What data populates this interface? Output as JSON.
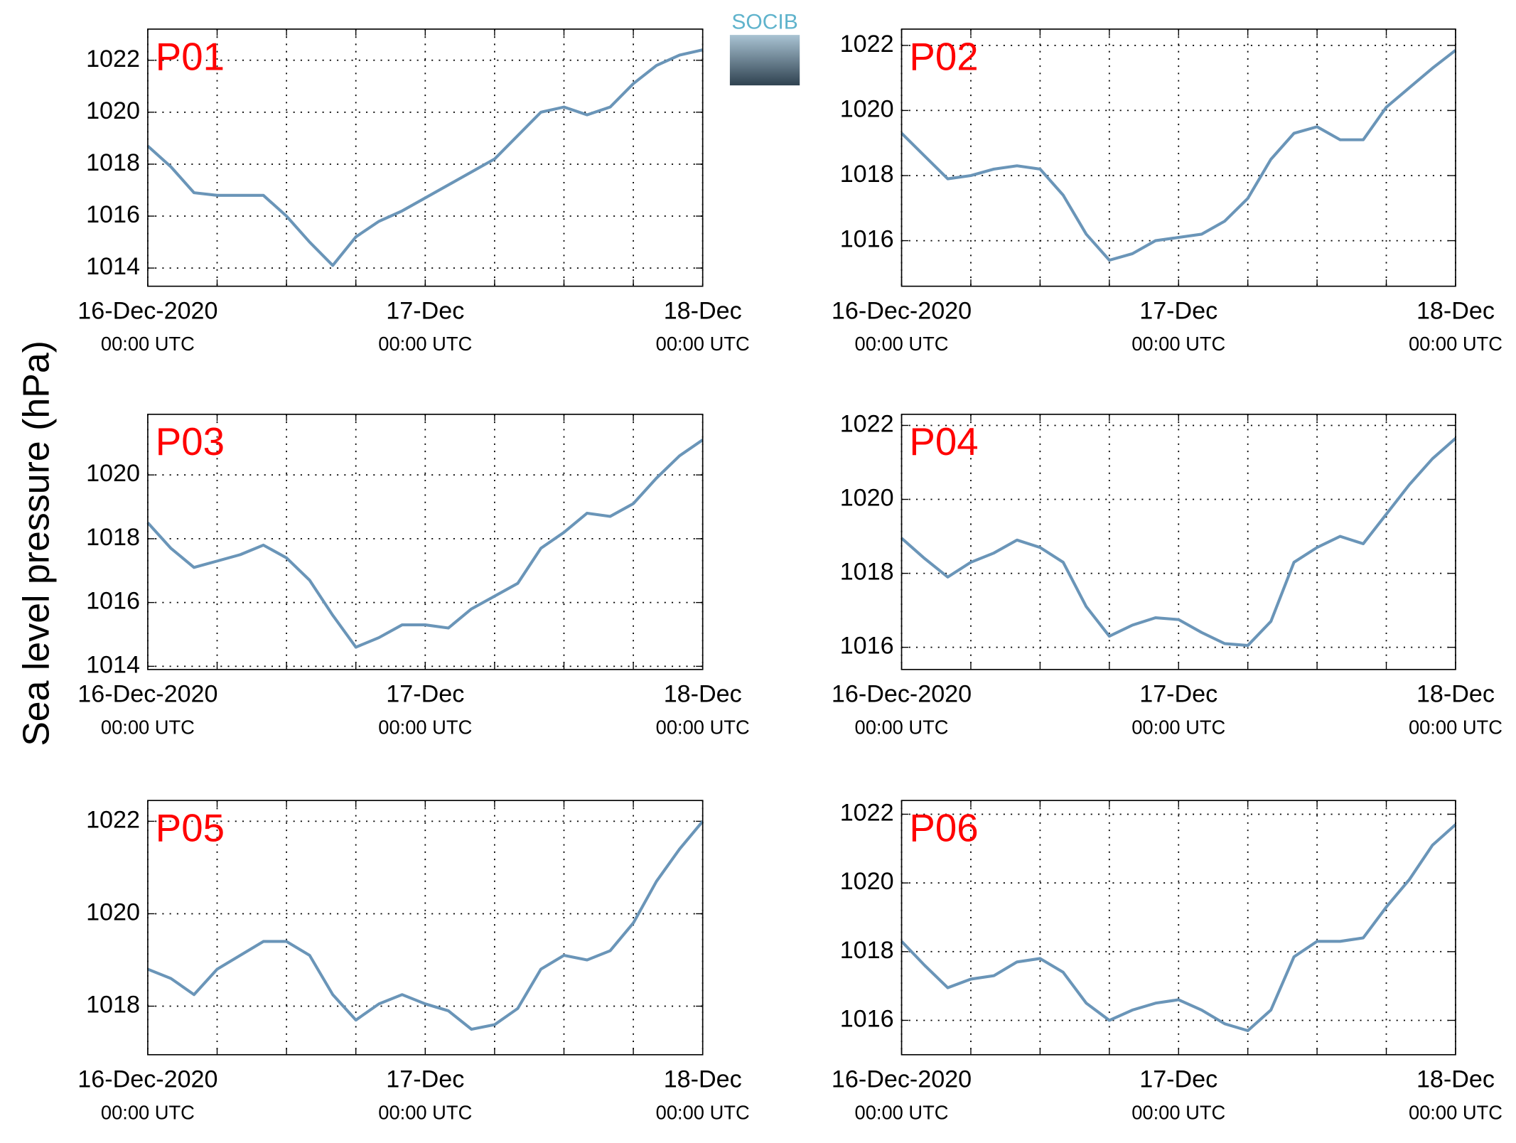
{
  "ylabel": "Sea level pressure (hPa)",
  "logo": "SOCIB",
  "chart_data": [
    {
      "type": "line",
      "title": "P01",
      "color": "#6a95b8",
      "grid": true,
      "x": [
        0,
        2,
        4,
        6,
        8,
        10,
        12,
        14,
        16,
        18,
        20,
        22,
        24,
        26,
        28,
        30,
        32,
        34,
        36,
        38,
        40,
        42,
        44,
        46,
        48
      ],
      "values": [
        1018.7,
        1017.9,
        1016.9,
        1016.8,
        1016.8,
        1016.8,
        1016.0,
        1015.0,
        1014.1,
        1015.2,
        1015.8,
        1016.2,
        1016.7,
        1017.2,
        1017.7,
        1018.2,
        1019.1,
        1020.0,
        1020.2,
        1019.9,
        1020.2,
        1021.1,
        1021.8,
        1022.2,
        1022.4
      ],
      "xlim": [
        0,
        48
      ],
      "ylim": [
        1013.3,
        1023.2
      ],
      "yticks": [
        1014,
        1016,
        1018,
        1020,
        1022
      ],
      "xticks": [
        {
          "value": 0,
          "label": "16-Dec-2020",
          "sublabel": "00:00 UTC"
        },
        {
          "value": 6,
          "label": null
        },
        {
          "value": 12,
          "label": null
        },
        {
          "value": 18,
          "label": null
        },
        {
          "value": 24,
          "label": "17-Dec",
          "sublabel": "00:00 UTC"
        },
        {
          "value": 30,
          "label": null
        },
        {
          "value": 36,
          "label": null
        },
        {
          "value": 42,
          "label": null
        },
        {
          "value": 48,
          "label": "18-Dec",
          "sublabel": "00:00 UTC"
        }
      ]
    },
    {
      "type": "line",
      "title": "P02",
      "color": "#6a95b8",
      "grid": true,
      "x": [
        0,
        2,
        4,
        6,
        8,
        10,
        12,
        14,
        16,
        18,
        20,
        22,
        24,
        26,
        28,
        30,
        32,
        34,
        36,
        38,
        40,
        42,
        44,
        46,
        48
      ],
      "values": [
        1019.3,
        1018.6,
        1017.9,
        1018.0,
        1018.2,
        1018.3,
        1018.2,
        1017.4,
        1016.2,
        1015.4,
        1015.6,
        1016.0,
        1016.1,
        1016.2,
        1016.6,
        1017.3,
        1018.5,
        1019.3,
        1019.5,
        1019.1,
        1019.1,
        1020.1,
        1020.7,
        1021.3,
        1021.85
      ],
      "xlim": [
        0,
        48
      ],
      "ylim": [
        1014.6,
        1022.5
      ],
      "yticks": [
        1016,
        1018,
        1020,
        1022
      ],
      "xticks": [
        {
          "value": 0,
          "label": "16-Dec-2020",
          "sublabel": "00:00 UTC"
        },
        {
          "value": 6,
          "label": null
        },
        {
          "value": 12,
          "label": null
        },
        {
          "value": 18,
          "label": null
        },
        {
          "value": 24,
          "label": "17-Dec",
          "sublabel": "00:00 UTC"
        },
        {
          "value": 30,
          "label": null
        },
        {
          "value": 36,
          "label": null
        },
        {
          "value": 42,
          "label": null
        },
        {
          "value": 48,
          "label": "18-Dec",
          "sublabel": "00:00 UTC"
        }
      ]
    },
    {
      "type": "line",
      "title": "P03",
      "color": "#6a95b8",
      "grid": true,
      "x": [
        0,
        2,
        4,
        6,
        8,
        10,
        12,
        14,
        16,
        18,
        20,
        22,
        24,
        26,
        28,
        30,
        32,
        34,
        36,
        38,
        40,
        42,
        44,
        46,
        48
      ],
      "values": [
        1018.5,
        1017.7,
        1017.1,
        1017.3,
        1017.5,
        1017.8,
        1017.4,
        1016.7,
        1015.6,
        1014.6,
        1014.9,
        1015.3,
        1015.3,
        1015.2,
        1015.8,
        1016.2,
        1016.6,
        1017.7,
        1018.2,
        1018.8,
        1018.7,
        1019.1,
        1019.9,
        1020.6,
        1021.1
      ],
      "xlim": [
        0,
        48
      ],
      "ylim": [
        1013.9,
        1021.9
      ],
      "yticks": [
        1014,
        1016,
        1018,
        1020
      ],
      "xticks": [
        {
          "value": 0,
          "label": "16-Dec-2020",
          "sublabel": "00:00 UTC"
        },
        {
          "value": 6,
          "label": null
        },
        {
          "value": 12,
          "label": null
        },
        {
          "value": 18,
          "label": null
        },
        {
          "value": 24,
          "label": "17-Dec",
          "sublabel": "00:00 UTC"
        },
        {
          "value": 30,
          "label": null
        },
        {
          "value": 36,
          "label": null
        },
        {
          "value": 42,
          "label": null
        },
        {
          "value": 48,
          "label": "18-Dec",
          "sublabel": "00:00 UTC"
        }
      ]
    },
    {
      "type": "line",
      "title": "P04",
      "color": "#6a95b8",
      "grid": true,
      "x": [
        0,
        2,
        4,
        6,
        8,
        10,
        12,
        14,
        16,
        18,
        20,
        22,
        24,
        26,
        28,
        30,
        32,
        34,
        36,
        38,
        40,
        42,
        44,
        46,
        48
      ],
      "values": [
        1018.95,
        1018.4,
        1017.9,
        1018.3,
        1018.55,
        1018.9,
        1018.7,
        1018.3,
        1017.1,
        1016.3,
        1016.6,
        1016.8,
        1016.75,
        1016.4,
        1016.1,
        1016.05,
        1016.7,
        1018.3,
        1018.7,
        1019.0,
        1018.8,
        1019.6,
        1020.4,
        1021.1,
        1021.65
      ],
      "xlim": [
        0,
        48
      ],
      "ylim": [
        1015.4,
        1022.3
      ],
      "yticks": [
        1016,
        1018,
        1020,
        1022
      ],
      "xticks": [
        {
          "value": 0,
          "label": "16-Dec-2020",
          "sublabel": "00:00 UTC"
        },
        {
          "value": 6,
          "label": null
        },
        {
          "value": 12,
          "label": null
        },
        {
          "value": 18,
          "label": null
        },
        {
          "value": 24,
          "label": "17-Dec",
          "sublabel": "00:00 UTC"
        },
        {
          "value": 30,
          "label": null
        },
        {
          "value": 36,
          "label": null
        },
        {
          "value": 42,
          "label": null
        },
        {
          "value": 48,
          "label": "18-Dec",
          "sublabel": "00:00 UTC"
        }
      ]
    },
    {
      "type": "line",
      "title": "P05",
      "color": "#6a95b8",
      "grid": true,
      "x": [
        0,
        2,
        4,
        6,
        8,
        10,
        12,
        14,
        16,
        18,
        20,
        22,
        24,
        26,
        28,
        30,
        32,
        34,
        36,
        38,
        40,
        42,
        44,
        46,
        48
      ],
      "values": [
        1018.8,
        1018.6,
        1018.25,
        1018.8,
        1019.1,
        1019.4,
        1019.4,
        1019.1,
        1018.25,
        1017.7,
        1018.05,
        1018.25,
        1018.05,
        1017.9,
        1017.5,
        1017.6,
        1017.95,
        1018.8,
        1019.1,
        1019.0,
        1019.2,
        1019.8,
        1020.7,
        1021.4,
        1022.0
      ],
      "xlim": [
        0,
        48
      ],
      "ylim": [
        1016.95,
        1022.45
      ],
      "yticks": [
        1018,
        1020,
        1022
      ],
      "xticks": [
        {
          "value": 0,
          "label": "16-Dec-2020",
          "sublabel": "00:00 UTC"
        },
        {
          "value": 6,
          "label": null
        },
        {
          "value": 12,
          "label": null
        },
        {
          "value": 18,
          "label": null
        },
        {
          "value": 24,
          "label": "17-Dec",
          "sublabel": "00:00 UTC"
        },
        {
          "value": 30,
          "label": null
        },
        {
          "value": 36,
          "label": null
        },
        {
          "value": 42,
          "label": null
        },
        {
          "value": 48,
          "label": "18-Dec",
          "sublabel": "00:00 UTC"
        }
      ]
    },
    {
      "type": "line",
      "title": "P06",
      "color": "#6a95b8",
      "grid": true,
      "x": [
        0,
        2,
        4,
        6,
        8,
        10,
        12,
        14,
        16,
        18,
        20,
        22,
        24,
        26,
        28,
        30,
        32,
        34,
        36,
        38,
        40,
        42,
        44,
        46,
        48
      ],
      "values": [
        1018.3,
        1017.6,
        1016.95,
        1017.2,
        1017.3,
        1017.7,
        1017.8,
        1017.4,
        1016.5,
        1016.0,
        1016.3,
        1016.5,
        1016.6,
        1016.3,
        1015.9,
        1015.7,
        1016.3,
        1017.85,
        1018.3,
        1018.3,
        1018.4,
        1019.3,
        1020.1,
        1021.1,
        1021.7
      ],
      "xlim": [
        0,
        48
      ],
      "ylim": [
        1015.0,
        1022.4
      ],
      "yticks": [
        1016,
        1018,
        1020,
        1022
      ],
      "xticks": [
        {
          "value": 0,
          "label": "16-Dec-2020",
          "sublabel": "00:00 UTC"
        },
        {
          "value": 6,
          "label": null
        },
        {
          "value": 12,
          "label": null
        },
        {
          "value": 18,
          "label": null
        },
        {
          "value": 24,
          "label": "17-Dec",
          "sublabel": "00:00 UTC"
        },
        {
          "value": 30,
          "label": null
        },
        {
          "value": 36,
          "label": null
        },
        {
          "value": 42,
          "label": null
        },
        {
          "value": 48,
          "label": "18-Dec",
          "sublabel": "00:00 UTC"
        }
      ]
    }
  ]
}
